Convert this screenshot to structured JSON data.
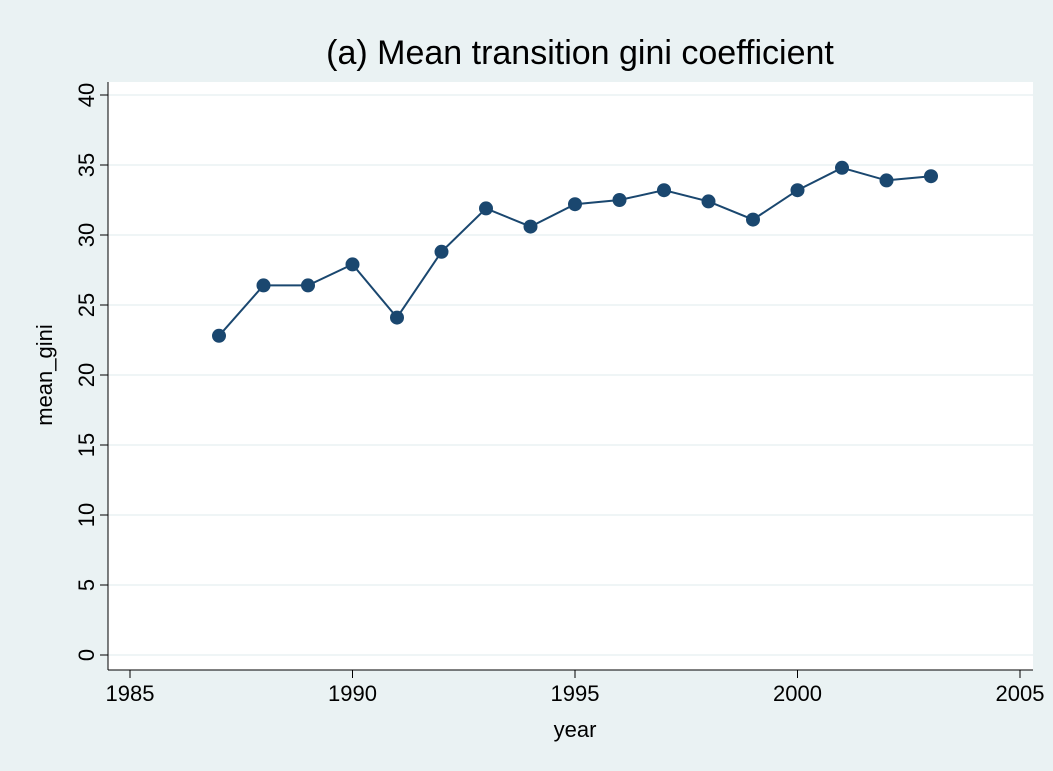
{
  "chart_data": {
    "type": "line",
    "title": "(a) Mean transition gini coefficient",
    "x_label": "year",
    "y_label": "mean_gini",
    "x": [
      1987,
      1988,
      1989,
      1990,
      1991,
      1992,
      1993,
      1994,
      1995,
      1996,
      1997,
      1998,
      1999,
      2000,
      2001,
      2002,
      2003
    ],
    "series": [
      {
        "name": "mean_gini",
        "color": "#1a476f",
        "values": [
          22.8,
          26.4,
          26.4,
          27.9,
          24.1,
          28.8,
          31.9,
          30.6,
          32.2,
          32.5,
          33.2,
          32.4,
          31.1,
          33.2,
          34.8,
          33.9,
          34.2
        ]
      }
    ],
    "xlim": [
      1985,
      2005
    ],
    "xticks": [
      1985,
      1990,
      1995,
      2000,
      2005
    ],
    "ylim": [
      0,
      40
    ],
    "yticks": [
      0,
      5,
      10,
      15,
      20,
      25,
      30,
      35,
      40
    ],
    "grid": true
  }
}
